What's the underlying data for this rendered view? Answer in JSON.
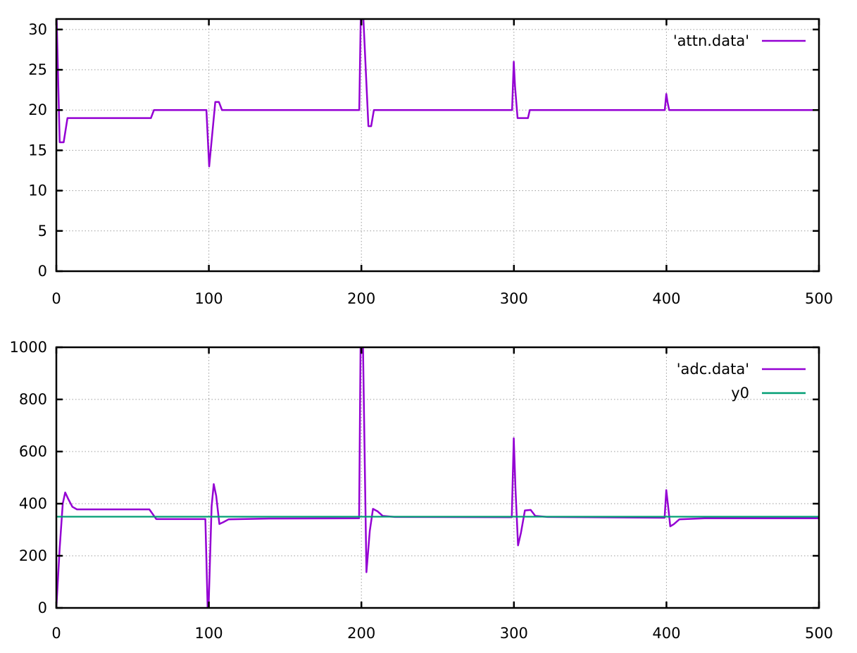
{
  "figure": {
    "background": "#ffffff",
    "border_color": "#000000",
    "grid_color": "#9c9c9c",
    "text_color": "#000000"
  },
  "chart_data": [
    {
      "name": "attn-plot",
      "type": "line",
      "title": "",
      "xlabel": "",
      "ylabel": "",
      "grid": true,
      "legend_position": "top-right-inside",
      "xlim": [
        0,
        500
      ],
      "ylim": [
        0,
        31.3
      ],
      "xticks": [
        0,
        100,
        200,
        300,
        400,
        500
      ],
      "yticks": [
        0,
        5,
        10,
        15,
        20,
        25,
        30
      ],
      "series": [
        {
          "name": "'attn.data'",
          "color": "#9400d3",
          "points": [
            [
              0,
              33
            ],
            [
              2.2,
              16
            ],
            [
              4.8,
              16
            ],
            [
              7.3,
              19
            ],
            [
              62,
              19
            ],
            [
              64,
              20
            ],
            [
              98.4,
              20
            ],
            [
              100.2,
              13
            ],
            [
              104.2,
              21
            ],
            [
              106.6,
              21
            ],
            [
              108.6,
              20
            ],
            [
              198.6,
              20
            ],
            [
              199.7,
              33
            ],
            [
              200.9,
              33
            ],
            [
              204.6,
              18
            ],
            [
              206.4,
              18
            ],
            [
              208.2,
              20
            ],
            [
              298.8,
              20
            ],
            [
              299.9,
              26
            ],
            [
              300.7,
              23
            ],
            [
              302.4,
              19
            ],
            [
              309.2,
              19
            ],
            [
              310.4,
              20
            ],
            [
              398.9,
              20
            ],
            [
              399.9,
              22
            ],
            [
              400.7,
              21
            ],
            [
              401.8,
              20
            ],
            [
              500,
              20
            ]
          ]
        }
      ]
    },
    {
      "name": "adc-plot",
      "type": "line",
      "title": "",
      "xlabel": "",
      "ylabel": "",
      "grid": true,
      "legend_position": "top-right-inside",
      "xlim": [
        0,
        500
      ],
      "ylim": [
        0,
        1000
      ],
      "xticks": [
        0,
        100,
        200,
        300,
        400,
        500
      ],
      "yticks": [
        0,
        200,
        400,
        600,
        800,
        1000
      ],
      "series": [
        {
          "name": "'adc.data'",
          "color": "#9400d3",
          "points": [
            [
              0,
              0
            ],
            [
              2.2,
              230
            ],
            [
              4.2,
              400
            ],
            [
              5.8,
              443
            ],
            [
              7.8,
              418
            ],
            [
              10.5,
              388
            ],
            [
              13.5,
              378
            ],
            [
              61,
              378
            ],
            [
              65.5,
              341
            ],
            [
              97.7,
              341
            ],
            [
              99.2,
              0
            ],
            [
              99.8,
              0
            ],
            [
              101.8,
              390
            ],
            [
              103.2,
              475
            ],
            [
              104.8,
              430
            ],
            [
              106.9,
              322
            ],
            [
              109.5,
              329
            ],
            [
              113,
              340
            ],
            [
              140,
              343
            ],
            [
              198.5,
              344
            ],
            [
              199.6,
              1100
            ],
            [
              200.8,
              1100
            ],
            [
              203.3,
              137
            ],
            [
              205.5,
              295
            ],
            [
              207.6,
              380
            ],
            [
              210.5,
              371
            ],
            [
              214,
              353
            ],
            [
              222,
              349
            ],
            [
              298.6,
              348
            ],
            [
              299.9,
              651
            ],
            [
              301,
              460
            ],
            [
              302.7,
              240
            ],
            [
              304.6,
              288
            ],
            [
              307.2,
              374
            ],
            [
              311,
              376
            ],
            [
              314,
              353
            ],
            [
              322,
              349
            ],
            [
              398.8,
              346
            ],
            [
              399.9,
              452
            ],
            [
              401,
              395
            ],
            [
              402.5,
              313
            ],
            [
              404.8,
              321
            ],
            [
              408.5,
              340
            ],
            [
              425,
              344
            ],
            [
              500,
              344
            ]
          ]
        },
        {
          "name": "y0",
          "color": "#009e73",
          "points": [
            [
              0,
              350
            ],
            [
              500,
              350
            ]
          ]
        }
      ]
    }
  ]
}
